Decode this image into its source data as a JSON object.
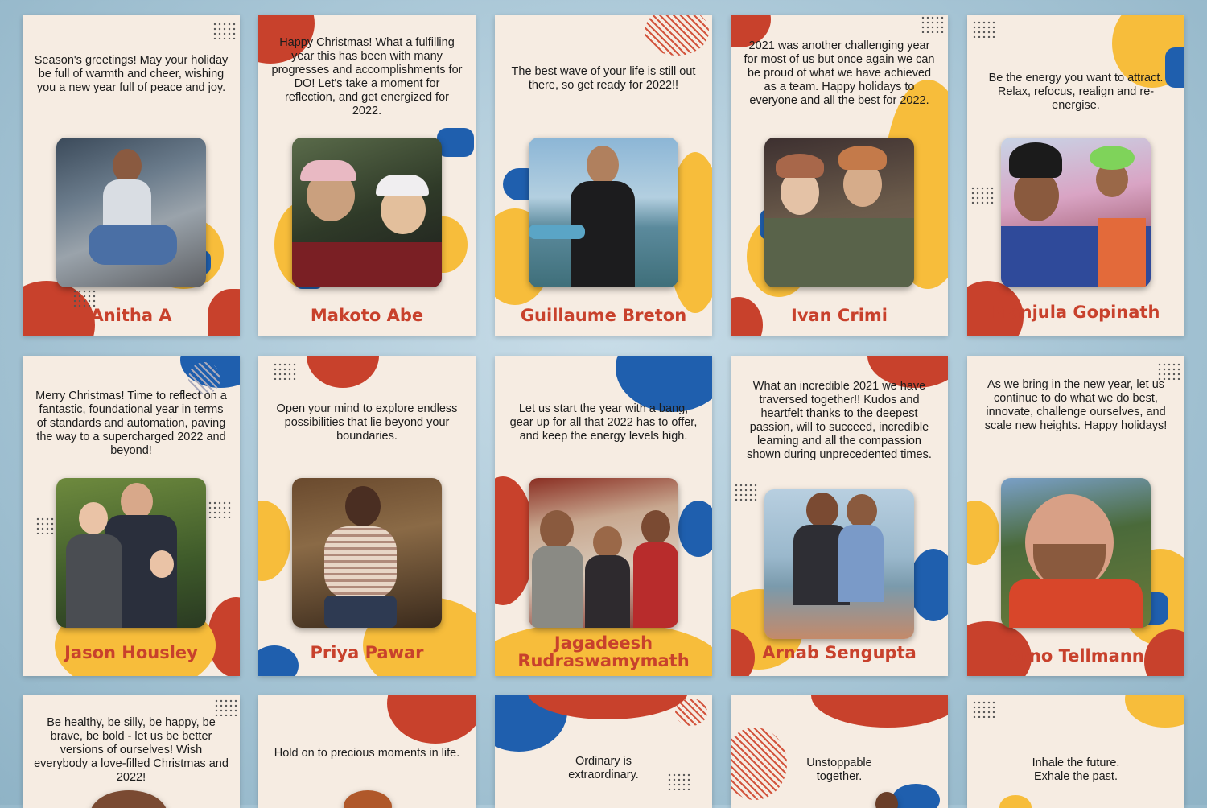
{
  "colors": {
    "red": "#c8412c",
    "blue": "#1f5fae",
    "yellow": "#f7bd3b",
    "card": "#f6ece2"
  },
  "cards": [
    {
      "message": "Season's greetings! May your holiday be full of warmth and cheer, wishing you a new year full of peace and joy.",
      "name": "Anitha A",
      "photo_icon": "portrait-photo"
    },
    {
      "message": "Happy Christmas! What a fulfilling year this has been with many progresses and accomplishments for DO! Let's take a moment for reflection, and get energized for 2022.",
      "name": "Makoto Abe",
      "photo_icon": "portrait-photo"
    },
    {
      "message": "The best wave of your life is still out there, so get ready for 2022!!",
      "name": "Guillaume Breton",
      "photo_icon": "portrait-photo"
    },
    {
      "message": "2021 was another challenging year for most of us but once again we can be proud of what we have achieved as a team. Happy holidays to everyone and all the best for 2022.",
      "name": "Ivan Crimi",
      "photo_icon": "portrait-photo"
    },
    {
      "message": "Be the energy you want to attract. Relax, refocus, realign and re-energise.",
      "name": "Manjula Gopinath",
      "photo_icon": "portrait-photo"
    },
    {
      "message": "Merry Christmas! Time to reflect on a fantastic, foundational year in terms of standards and automation, paving the way to a supercharged 2022 and beyond!",
      "name": "Jason Housley",
      "photo_icon": "portrait-photo"
    },
    {
      "message": "Open your mind to explore endless possibilities that lie beyond your boundaries.",
      "name": "Priya Pawar",
      "photo_icon": "portrait-photo"
    },
    {
      "message": "Let us start the year with a bang, gear up for all that 2022 has to offer, and keep the energy levels high.",
      "name": "Jagadeesh Rudraswamymath",
      "photo_icon": "portrait-photo"
    },
    {
      "message": "What an incredible 2021 we have traversed together!! Kudos and heartfelt thanks to the deepest passion, will to succeed, incredible learning and all the compassion shown during unprecedented times.",
      "name": "Arnab Sengupta",
      "photo_icon": "portrait-photo"
    },
    {
      "message": "As we bring in the new year, let us continue to do what we do best, innovate, challenge ourselves, and scale new heights. Happy holidays!",
      "name": "Arno Tellmann",
      "photo_icon": "portrait-photo"
    },
    {
      "message": "Be healthy, be silly, be happy, be brave, be bold - let us be better versions of ourselves! Wish everybody a love-filled Christmas and 2022!",
      "name": "",
      "photo_icon": "portrait-photo"
    },
    {
      "message": "Hold on to precious moments in life.",
      "name": "",
      "photo_icon": "portrait-photo"
    },
    {
      "message": "Ordinary is extraordinary.",
      "name": "",
      "photo_icon": "portrait-photo"
    },
    {
      "message": "Unstoppable together.",
      "name": "",
      "photo_icon": "portrait-photo"
    },
    {
      "message": "Inhale the future. Exhale the past.",
      "name": "",
      "photo_icon": "portrait-photo"
    }
  ]
}
